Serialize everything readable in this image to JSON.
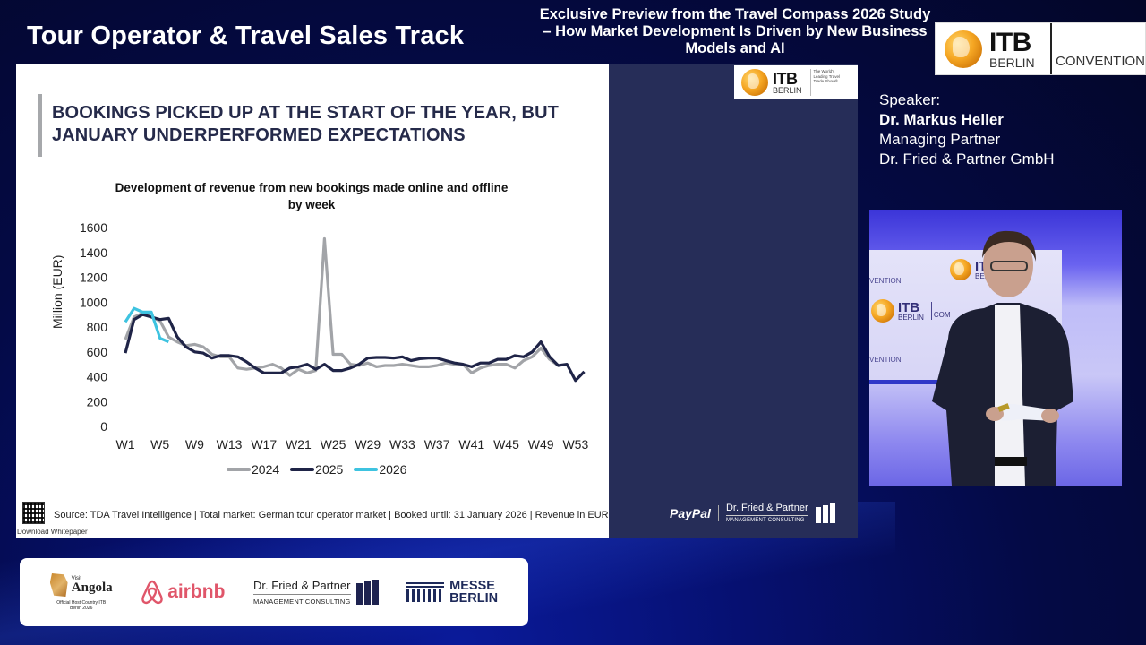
{
  "header": {
    "track_title": "Tour Operator & Travel Sales Track",
    "session_title": "Exclusive Preview from the Travel Compass 2026 Study – How Market Development Is Driven by New Business Models and AI",
    "badge": {
      "itb": "ITB",
      "berlin": "BERLIN",
      "convention": "CONVENTION"
    }
  },
  "speaker": {
    "label": "Speaker:",
    "name": "Dr. Markus Heller",
    "role": "Managing Partner",
    "company": "Dr. Fried & Partner GmbH"
  },
  "slide": {
    "headline_line1": "BOOKINGS PICKED UP AT THE START OF THE YEAR, BUT",
    "headline_line2": "JANUARY UNDERPERFORMED EXPECTATIONS",
    "itb_logo": {
      "itb": "ITB",
      "berlin": "BERLIN",
      "tagline": "The World's Leading Travel Trade Show®"
    },
    "source": "Source: TDA Travel Intelligence | Total market: German tour operator market | Booked until: 31 January 2026 | Revenue in EUR",
    "download": "Download Whitepaper",
    "footer_logos": {
      "paypal": "PayPal",
      "dfp_name": "Dr. Fried & Partner",
      "dfp_sub": "MANAGEMENT CONSULTING"
    }
  },
  "chart_data": {
    "type": "line",
    "title": "Development of revenue from new bookings made online and offline",
    "subtitle": "by week",
    "xlabel": "",
    "ylabel": "Million (EUR)",
    "ylim": [
      0,
      1600
    ],
    "yticks": [
      0,
      200,
      400,
      600,
      800,
      1000,
      1200,
      1400,
      1600
    ],
    "xtick_labels": [
      "W1",
      "W5",
      "W9",
      "W13",
      "W17",
      "W21",
      "W25",
      "W29",
      "W33",
      "W37",
      "W41",
      "W45",
      "W49",
      "W53"
    ],
    "grid": false,
    "legend_position": "bottom",
    "series": [
      {
        "name": "2024",
        "color": "#a2a4a8",
        "values": [
          700,
          880,
          910,
          880,
          850,
          720,
          680,
          650,
          660,
          640,
          580,
          560,
          560,
          470,
          460,
          470,
          480,
          500,
          470,
          410,
          460,
          430,
          450,
          1510,
          580,
          580,
          500,
          490,
          510,
          480,
          490,
          490,
          500,
          490,
          480,
          480,
          490,
          510,
          500,
          500,
          430,
          470,
          490,
          500,
          500,
          470,
          530,
          560,
          630,
          540,
          490
        ]
      },
      {
        "name": "2025",
        "color": "#1f2447",
        "values": [
          590,
          860,
          900,
          880,
          860,
          870,
          720,
          640,
          600,
          590,
          550,
          570,
          570,
          560,
          520,
          470,
          430,
          430,
          430,
          470,
          480,
          500,
          460,
          500,
          450,
          450,
          470,
          500,
          550,
          555,
          555,
          550,
          560,
          530,
          545,
          550,
          550,
          530,
          510,
          500,
          480,
          510,
          510,
          540,
          540,
          570,
          560,
          600,
          680,
          560,
          490,
          500,
          370,
          440
        ]
      },
      {
        "name": "2026",
        "color": "#3ec3e0",
        "values": [
          840,
          950,
          920,
          920,
          710,
          680
        ]
      }
    ]
  },
  "sponsors": {
    "angola": {
      "visit": "Visit",
      "word": "Angola",
      "caption": "Official Host Country ITB Berlin 2026"
    },
    "airbnb": "airbnb",
    "dfp": {
      "name": "Dr. Fried & Partner",
      "sub": "MANAGEMENT CONSULTING"
    },
    "messe": {
      "line1": "MESSE",
      "line2": "BERLIN"
    }
  },
  "video": {
    "backdrop_itb": "ITB",
    "backdrop_berlin": "BERLIN",
    "backdrop_text1": "VENTION",
    "backdrop_text2": "VENTION",
    "backdrop_com": "COM"
  }
}
